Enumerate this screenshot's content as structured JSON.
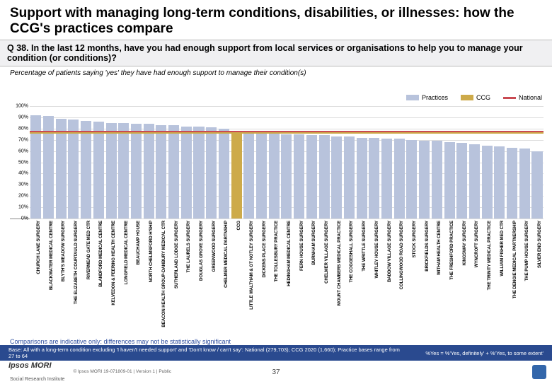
{
  "title": "Support with managing long-term conditions, disabilities, or illnesses: how the CCG's practices compare",
  "question": "Q 38. In the last 12 months, have you had enough support from local services or organisations to help you to manage your condition (or conditions)?",
  "subtitle": "Percentage of patients saying 'yes' they have had enough support to manage their condition(s)",
  "legend": {
    "practices": "Practices",
    "ccg": "CCG",
    "national": "National"
  },
  "chart": {
    "type": "bar",
    "ylim": [
      0,
      100
    ],
    "ytick_step": 10,
    "ytick_suffix": "%",
    "grid_color": "#dddddd",
    "axis_color": "#888888",
    "bar_colors": {
      "practice": "#b8c3dc",
      "ccg_bar": "#cdaa4a",
      "ccg_line": "#cdaa4a",
      "national_line": "#c94a52"
    },
    "reference_lines": {
      "ccg": 77,
      "national": 78
    },
    "categories": [
      {
        "label": "CHURCH LANE SURGERY",
        "value": 92,
        "kind": "practice"
      },
      {
        "label": "BLACKWATER MEDICAL CENTRE",
        "value": 91,
        "kind": "practice"
      },
      {
        "label": "BLYTH'S MEADOW SURGERY",
        "value": 89,
        "kind": "practice"
      },
      {
        "label": "THE ELIZABETH COURTAULD SURGERY",
        "value": 88,
        "kind": "practice"
      },
      {
        "label": "RIVERMEAD GATE MED CTR",
        "value": 87,
        "kind": "practice"
      },
      {
        "label": "BLANDFORD MEDICAL CENTRE",
        "value": 86,
        "kind": "practice"
      },
      {
        "label": "KELVEDON & FEERING HEALTH CENTRE",
        "value": 85,
        "kind": "practice"
      },
      {
        "label": "LONGFIELD MEDICAL CENTRE",
        "value": 85,
        "kind": "practice"
      },
      {
        "label": "BEAUCHAMP HOUSE",
        "value": 84,
        "kind": "practice"
      },
      {
        "label": "NORTH CHELMSFORD H'SHIP",
        "value": 84,
        "kind": "practice"
      },
      {
        "label": "BEACON HEALTH GROUP-DANBURY MEDICAL CTR",
        "value": 83,
        "kind": "practice"
      },
      {
        "label": "SUTHERLAND LODGE SURGERY",
        "value": 83,
        "kind": "practice"
      },
      {
        "label": "THE LAURELS SURGERY",
        "value": 82,
        "kind": "practice"
      },
      {
        "label": "DOUGLAS GROVE SURGERY",
        "value": 82,
        "kind": "practice"
      },
      {
        "label": "GREENWOOD SURGERY",
        "value": 81,
        "kind": "practice"
      },
      {
        "label": "CHELMER MEDICAL PARTNSHIP",
        "value": 80,
        "kind": "practice"
      },
      {
        "label": "CCG",
        "value": 77,
        "kind": "ccg"
      },
      {
        "label": "LITTLE WALTHAM & GT NOTLEY SURGERY",
        "value": 77,
        "kind": "practice"
      },
      {
        "label": "DICKENS PLACE SURGERY",
        "value": 76,
        "kind": "practice"
      },
      {
        "label": "THE TOLLESBURY PRACTICE",
        "value": 76,
        "kind": "practice"
      },
      {
        "label": "HEDINGHAM MEDICAL CENTRE",
        "value": 75,
        "kind": "practice"
      },
      {
        "label": "FERN HOUSE SURGERY",
        "value": 75,
        "kind": "practice"
      },
      {
        "label": "BURNHAM SURGERY",
        "value": 74,
        "kind": "practice"
      },
      {
        "label": "CHELMER VILLAGE SURGERY",
        "value": 74,
        "kind": "practice"
      },
      {
        "label": "MOUNT CHAMBERS MEDICAL PRACTICE",
        "value": 73,
        "kind": "practice"
      },
      {
        "label": "THE COGGESHALL SURGERY",
        "value": 73,
        "kind": "practice"
      },
      {
        "label": "THE WRITTLE SURGERY",
        "value": 72,
        "kind": "practice"
      },
      {
        "label": "WHITLEY HOUSE SURGERY",
        "value": 72,
        "kind": "practice"
      },
      {
        "label": "BADDOW VILLAGE SURGERY",
        "value": 71,
        "kind": "practice"
      },
      {
        "label": "COLLINGWOOD ROAD SURGERY",
        "value": 71,
        "kind": "practice"
      },
      {
        "label": "STOCK SURGERY",
        "value": 70,
        "kind": "practice"
      },
      {
        "label": "BRICKFIELDS SURGERY",
        "value": 69,
        "kind": "practice"
      },
      {
        "label": "WITHAM HEALTH CENTRE",
        "value": 69,
        "kind": "practice"
      },
      {
        "label": "THE FRESHFORD PRACTICE",
        "value": 68,
        "kind": "practice"
      },
      {
        "label": "KINGSWAY SURGERY",
        "value": 67,
        "kind": "practice"
      },
      {
        "label": "WYNCROFT SURGERY",
        "value": 66,
        "kind": "practice"
      },
      {
        "label": "THE TRINITY MEDICAL PRACTICE",
        "value": 65,
        "kind": "practice"
      },
      {
        "label": "WILLIAM FISHER MED CTR",
        "value": 64,
        "kind": "practice"
      },
      {
        "label": "THE DENGIE MEDICAL PARTNERSHIP",
        "value": 63,
        "kind": "practice"
      },
      {
        "label": "THE PUMP HOUSE SURGERY",
        "value": 62,
        "kind": "practice"
      },
      {
        "label": "SILVER END SURGERY",
        "value": 60,
        "kind": "practice"
      }
    ]
  },
  "comparison_note": "Comparisons are indicative only: differences may not be statistically significant",
  "base_text": "Base: All with a long-term condition excluding 'I haven't needed support' and 'Don't know / can't say': National (279,703); CCG 2020 (1,660); Practice bases range from 27 to 64",
  "yes_definition": "%Yes = %'Yes, definitely' + %'Yes, to some extent'",
  "footer": {
    "logo": "Ipsos MORI",
    "logo_sub": "Social Research Institute",
    "copyright": "© Ipsos MORI    19-071809-01 | Version 1 | Public"
  },
  "page_number": "37"
}
